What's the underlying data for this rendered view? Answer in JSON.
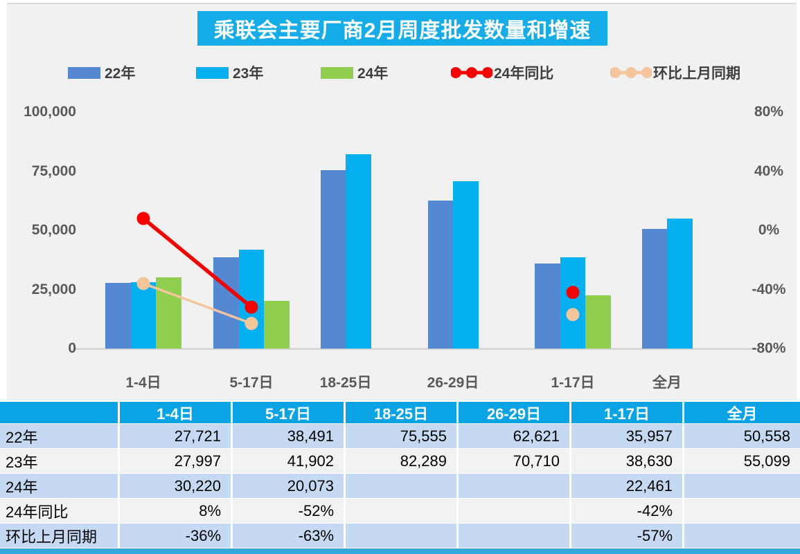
{
  "title": "乘联会主要厂商2月周度批发数量和增速",
  "colors": {
    "title_bg": "#14ACE9",
    "canvas_bg": "#f1f1f1",
    "bar_22": "#5588D2",
    "bar_23": "#04B0F0",
    "bar_24": "#90CE4E",
    "line_yoy": "#F80000",
    "line_mom": "#F5C59C",
    "header_bg": "#0AA4E6",
    "row_blue": "#C5D9F2",
    "row_gray": "#F2F2F2",
    "bottom_strip": "#34A7DD",
    "axis_text": "#595959"
  },
  "chart_data": {
    "type": "bar+line",
    "title": "乘联会主要厂商2月周度批发数量和增速",
    "categories": [
      "1-4日",
      "5-17日",
      "18-25日",
      "26-29日",
      "1-17日",
      "全月"
    ],
    "series": [
      {
        "name": "22年",
        "type": "bar",
        "color_key": "bar_22",
        "values": [
          27721,
          38491,
          75555,
          62621,
          35957,
          50558
        ]
      },
      {
        "name": "23年",
        "type": "bar",
        "color_key": "bar_23",
        "values": [
          27997,
          41902,
          82289,
          70710,
          38630,
          55099
        ]
      },
      {
        "name": "24年",
        "type": "bar",
        "color_key": "bar_24",
        "values": [
          30220,
          20073,
          null,
          null,
          22461,
          null
        ]
      },
      {
        "name": "24年同比",
        "type": "line",
        "axis": "right",
        "color_key": "line_yoy",
        "values": [
          8,
          -52,
          null,
          null,
          -42,
          null
        ]
      },
      {
        "name": "环比上月同期",
        "type": "line",
        "axis": "right",
        "color_key": "line_mom",
        "values": [
          -36,
          -63,
          null,
          null,
          -57,
          null
        ]
      }
    ],
    "left_axis": {
      "ticks": [
        "100,000",
        "75,000",
        "50,000",
        "25,000",
        "0"
      ],
      "min": 0,
      "max": 100000
    },
    "right_axis": {
      "ticks": [
        "80%",
        "40%",
        "0%",
        "-40%",
        "-80%"
      ],
      "min": -80,
      "max": 80
    },
    "grid": false,
    "legend_position": "top"
  },
  "legend": [
    {
      "label": "22年",
      "kind": "bar",
      "color_key": "bar_22"
    },
    {
      "label": "23年",
      "kind": "bar",
      "color_key": "bar_23"
    },
    {
      "label": "24年",
      "kind": "bar",
      "color_key": "bar_24"
    },
    {
      "label": "24年同比",
      "kind": "line",
      "color_key": "line_yoy"
    },
    {
      "label": "环比上月同期",
      "kind": "line",
      "color_key": "line_mom"
    }
  ],
  "table": {
    "header": [
      "",
      "1-4日",
      "5-17日",
      "18-25日",
      "26-29日",
      "1-17日",
      "全月"
    ],
    "rows": [
      {
        "label": "22年",
        "cells": [
          "27,721",
          "38,491",
          "75,555",
          "62,621",
          "35,957",
          "50,558"
        ]
      },
      {
        "label": "23年",
        "cells": [
          "27,997",
          "41,902",
          "82,289",
          "70,710",
          "38,630",
          "55,099"
        ]
      },
      {
        "label": "24年",
        "cells": [
          "30,220",
          "20,073",
          "",
          "",
          "22,461",
          ""
        ]
      },
      {
        "label": "24年同比",
        "cells": [
          "8%",
          "-52%",
          "",
          "",
          "-42%",
          ""
        ]
      },
      {
        "label": "环比上月同期",
        "cells": [
          "-36%",
          "-63%",
          "",
          "",
          "-57%",
          ""
        ]
      }
    ]
  }
}
